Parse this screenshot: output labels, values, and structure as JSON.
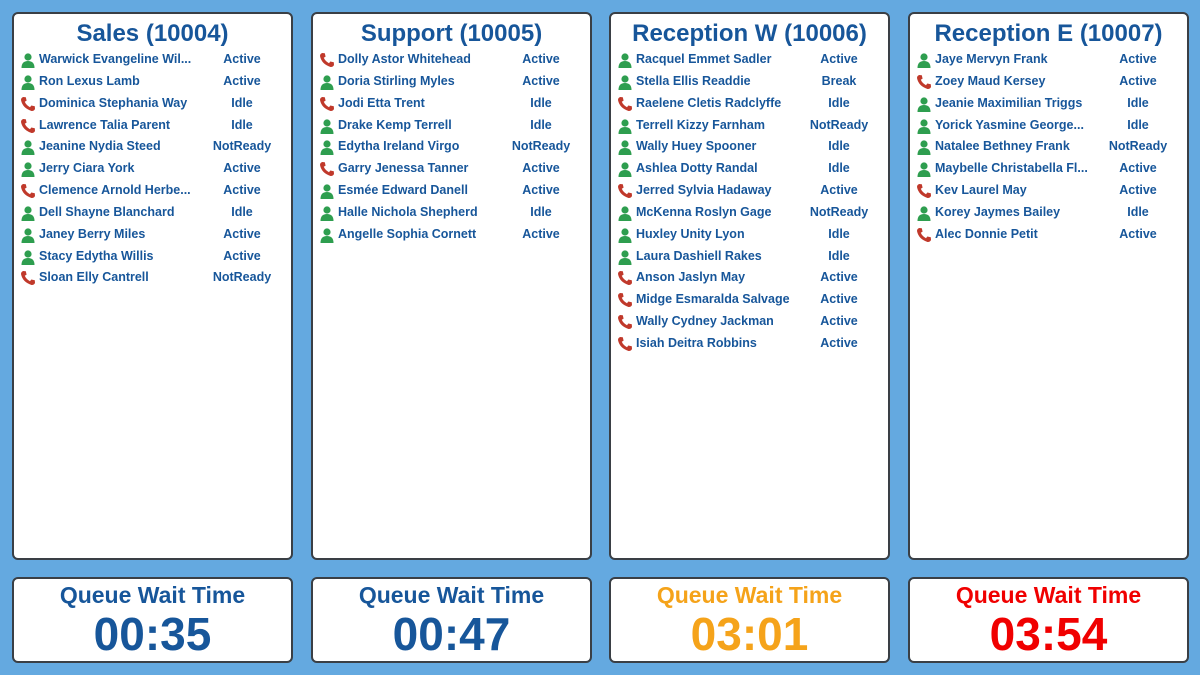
{
  "colors": {
    "normal": "#17569a",
    "warning": "#f5a31a",
    "critical": "#f00000",
    "agent_icon": "#2e9e4f",
    "call_icon": "#c0392b"
  },
  "queues": [
    {
      "title": "Sales (10004)",
      "wait_label": "Queue Wait Time",
      "wait_time": "00:35",
      "wait_level": "normal",
      "agents": [
        {
          "name": "Warwick Evangeline Wil...",
          "status": "Active",
          "icon": "agent-icon"
        },
        {
          "name": "Ron Lexus Lamb",
          "status": "Active",
          "icon": "agent-icon"
        },
        {
          "name": "Dominica Stephania Way",
          "status": "Idle",
          "icon": "phone-icon"
        },
        {
          "name": "Lawrence Talia Parent",
          "status": "Idle",
          "icon": "phone-icon"
        },
        {
          "name": "Jeanine Nydia Steed",
          "status": "NotReady",
          "icon": "agent-icon"
        },
        {
          "name": "Jerry Ciara York",
          "status": "Active",
          "icon": "agent-icon"
        },
        {
          "name": "Clemence Arnold Herbe...",
          "status": "Active",
          "icon": "phone-icon"
        },
        {
          "name": "Dell Shayne Blanchard",
          "status": "Idle",
          "icon": "agent-icon"
        },
        {
          "name": "Janey Berry Miles",
          "status": "Active",
          "icon": "agent-icon"
        },
        {
          "name": "Stacy Edytha Willis",
          "status": "Active",
          "icon": "agent-icon"
        },
        {
          "name": "Sloan Elly Cantrell",
          "status": "NotReady",
          "icon": "phone-icon"
        }
      ]
    },
    {
      "title": "Support (10005)",
      "wait_label": "Queue Wait Time",
      "wait_time": "00:47",
      "wait_level": "normal",
      "agents": [
        {
          "name": "Dolly Astor Whitehead",
          "status": "Active",
          "icon": "phone-icon"
        },
        {
          "name": "Doria Stirling Myles",
          "status": "Active",
          "icon": "agent-icon"
        },
        {
          "name": "Jodi Etta Trent",
          "status": "Idle",
          "icon": "phone-icon"
        },
        {
          "name": "Drake Kemp Terrell",
          "status": "Idle",
          "icon": "agent-icon"
        },
        {
          "name": "Edytha Ireland Virgo",
          "status": "NotReady",
          "icon": "agent-icon"
        },
        {
          "name": "Garry Jenessa Tanner",
          "status": "Active",
          "icon": "phone-icon"
        },
        {
          "name": "Esmée Edward Danell",
          "status": "Active",
          "icon": "agent-icon"
        },
        {
          "name": "Halle Nichola Shepherd",
          "status": "Idle",
          "icon": "agent-icon"
        },
        {
          "name": "Angelle Sophia Cornett",
          "status": "Active",
          "icon": "agent-icon"
        }
      ]
    },
    {
      "title": "Reception W (10006)",
      "wait_label": "Queue Wait Time",
      "wait_time": "03:01",
      "wait_level": "warning",
      "agents": [
        {
          "name": "Racquel Emmet Sadler",
          "status": "Active",
          "icon": "agent-icon"
        },
        {
          "name": "Stella Ellis Readdie",
          "status": "Break",
          "icon": "agent-icon"
        },
        {
          "name": "Raelene Cletis Radclyffe",
          "status": "Idle",
          "icon": "phone-icon"
        },
        {
          "name": "Terrell Kizzy Farnham",
          "status": "NotReady",
          "icon": "agent-icon"
        },
        {
          "name": "Wally Huey Spooner",
          "status": "Idle",
          "icon": "agent-icon"
        },
        {
          "name": "Ashlea Dotty Randal",
          "status": "Idle",
          "icon": "agent-icon"
        },
        {
          "name": "Jerred Sylvia Hadaway",
          "status": "Active",
          "icon": "phone-icon"
        },
        {
          "name": "McKenna Roslyn Gage",
          "status": "NotReady",
          "icon": "agent-icon"
        },
        {
          "name": "Huxley Unity Lyon",
          "status": "Idle",
          "icon": "agent-icon"
        },
        {
          "name": "Laura Dashiell Rakes",
          "status": "Idle",
          "icon": "agent-icon"
        },
        {
          "name": "Anson Jaslyn May",
          "status": "Active",
          "icon": "phone-icon"
        },
        {
          "name": "Midge Esmaralda Salvage",
          "status": "Active",
          "icon": "phone-icon"
        },
        {
          "name": "Wally Cydney Jackman",
          "status": "Active",
          "icon": "phone-icon"
        },
        {
          "name": "Isiah Deitra Robbins",
          "status": "Active",
          "icon": "phone-icon"
        }
      ]
    },
    {
      "title": "Reception E (10007)",
      "wait_label": "Queue Wait Time",
      "wait_time": "03:54",
      "wait_level": "critical",
      "agents": [
        {
          "name": "Jaye Mervyn Frank",
          "status": "Active",
          "icon": "agent-icon"
        },
        {
          "name": "Zoey Maud Kersey",
          "status": "Active",
          "icon": "phone-icon"
        },
        {
          "name": "Jeanie Maximilian Triggs",
          "status": "Idle",
          "icon": "agent-icon"
        },
        {
          "name": "Yorick Yasmine George...",
          "status": "Idle",
          "icon": "agent-icon"
        },
        {
          "name": "Natalee Bethney Frank",
          "status": "NotReady",
          "icon": "agent-icon"
        },
        {
          "name": "Maybelle Christabella Fl...",
          "status": "Active",
          "icon": "agent-icon"
        },
        {
          "name": "Kev Laurel May",
          "status": "Active",
          "icon": "phone-icon"
        },
        {
          "name": "Korey Jaymes Bailey",
          "status": "Idle",
          "icon": "agent-icon"
        },
        {
          "name": "Alec Donnie Petit",
          "status": "Active",
          "icon": "phone-icon"
        }
      ]
    }
  ]
}
